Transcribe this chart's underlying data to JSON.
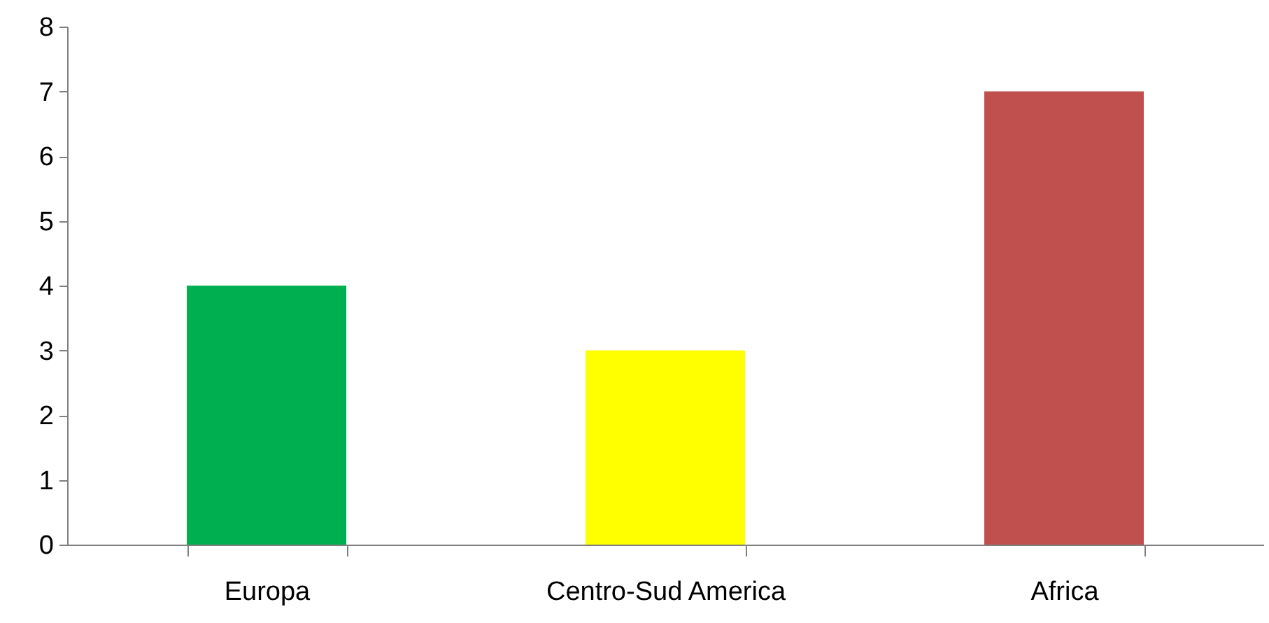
{
  "chart_data": {
    "type": "bar",
    "categories": [
      "Europa",
      "Centro-Sud America",
      "Africa"
    ],
    "values": [
      4,
      3,
      7
    ],
    "colors": [
      "#00b050",
      "#ffff00",
      "#c0504d"
    ],
    "ylim": [
      0,
      8
    ],
    "yticks": [
      0,
      1,
      2,
      3,
      4,
      5,
      6,
      7,
      8
    ],
    "grid": false
  }
}
